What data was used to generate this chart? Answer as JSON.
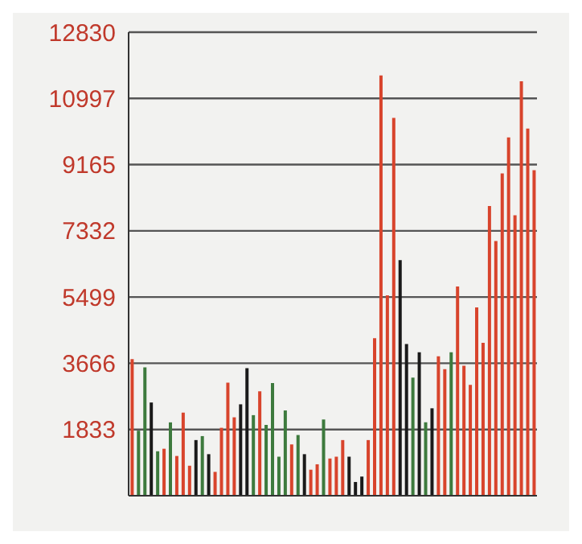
{
  "chart_data": {
    "type": "bar",
    "categories": [
      null,
      null,
      null,
      null,
      null,
      null,
      null,
      null,
      null,
      null,
      null,
      null,
      null,
      null,
      null,
      null,
      null,
      null,
      null,
      null,
      null,
      null,
      null,
      null,
      null,
      null,
      null,
      null,
      null,
      null,
      null,
      null,
      null,
      null,
      null,
      null,
      null,
      null,
      null,
      null,
      null,
      null,
      null,
      null,
      null,
      null,
      null,
      null,
      null,
      null,
      null,
      null,
      null,
      null,
      null,
      null,
      null,
      null,
      null,
      null,
      null,
      null,
      null,
      null
    ],
    "values": [
      3780,
      1800,
      3550,
      2580,
      1230,
      1300,
      2030,
      1100,
      2300,
      830,
      1540,
      1650,
      1150,
      660,
      1880,
      3130,
      2170,
      2530,
      3530,
      2230,
      2890,
      1960,
      3120,
      1080,
      2360,
      1420,
      1680,
      1150,
      720,
      870,
      2110,
      1030,
      1080,
      1540,
      1080,
      380,
      530,
      1540,
      4360,
      11630,
      5545,
      10460,
      6520,
      4200,
      3270,
      3970,
      2030,
      2420,
      3860,
      3500,
      3970,
      5790,
      3600,
      3070,
      5210,
      4230,
      8020,
      7050,
      8920,
      9920,
      7760,
      11470,
      10160,
      9010
    ],
    "colors": [
      "#d8442c",
      "#3d7a3d",
      "#3d7a3d",
      "#1a1a1a",
      "#3d7a3d",
      "#d8442c",
      "#3d7a3d",
      "#d8442c",
      "#d8442c",
      "#d8442c",
      "#1a1a1a",
      "#3d7a3d",
      "#1a1a1a",
      "#d8442c",
      "#d8442c",
      "#d8442c",
      "#d8442c",
      "#1a1a1a",
      "#1a1a1a",
      "#3d7a3d",
      "#d8442c",
      "#3d7a3d",
      "#3d7a3d",
      "#3d7a3d",
      "#3d7a3d",
      "#d8442c",
      "#3d7a3d",
      "#1a1a1a",
      "#d8442c",
      "#d8442c",
      "#3d7a3d",
      "#d8442c",
      "#d8442c",
      "#d8442c",
      "#1a1a1a",
      "#1a1a1a",
      "#1a1a1a",
      "#d8442c",
      "#d8442c",
      "#d8442c",
      "#d8442c",
      "#d8442c",
      "#1a1a1a",
      "#1a1a1a",
      "#3d7a3d",
      "#1a1a1a",
      "#3d7a3d",
      "#1a1a1a",
      "#d8442c",
      "#d8442c",
      "#3d7a3d",
      "#d8442c",
      "#d8442c",
      "#d8442c",
      "#d8442c",
      "#d8442c",
      "#d8442c",
      "#d8442c",
      "#d8442c",
      "#d8442c",
      "#d8442c",
      "#d8442c",
      "#d8442c",
      "#d8442c"
    ],
    "ylim": [
      0,
      12830
    ],
    "yticks": [
      1833,
      3666,
      5499,
      7332,
      9165,
      10997,
      12830
    ],
    "grid": "y"
  }
}
